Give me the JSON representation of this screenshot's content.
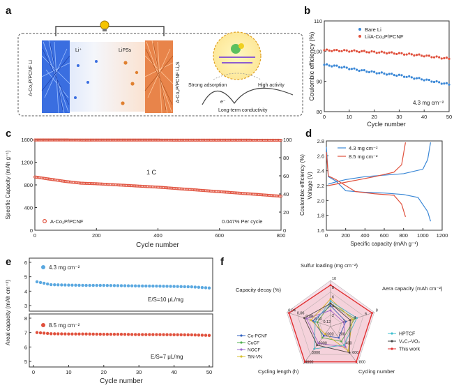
{
  "panels": {
    "a": {
      "letter": "a",
      "labels": {
        "left_electrode": "A-Co₂P/PCNF Li",
        "li_ion": "Li⁺",
        "lipss": "LiPSs",
        "right_electrode": "A-Co₂P/PCNF Li₂S",
        "strong_adsorption": "Strong adsorption",
        "high_activity": "High activity",
        "electron": "e⁻",
        "conductivity": "Long-term conductivity"
      },
      "colors": {
        "li_side": "#2f62d8",
        "s_side": "#e07a3a"
      }
    },
    "b": {
      "letter": "b",
      "ylabel": "Coulombic efficiency (%)",
      "xlabel": "Cycle number",
      "annotation": "4.3 mg cm⁻²",
      "yticks": [
        "80",
        "90",
        "100",
        "110"
      ],
      "xticks": [
        "0",
        "10",
        "20",
        "30",
        "40",
        "50"
      ],
      "legend": [
        "Bare Li",
        "Li/A-Co₂P/PCNF"
      ]
    },
    "c": {
      "letter": "c",
      "ylabel_left": "Specific Capacity (mAh g⁻¹)",
      "ylabel_right": "Coulombic efficiency (%)",
      "xlabel": "Cycle number",
      "rate_label": "1 C",
      "legend": "A-Co₂P/PCNF",
      "decay": "0.047% Per cycle",
      "yticks_left": [
        "0",
        "400",
        "800",
        "1200",
        "1600"
      ],
      "yticks_right": [
        "0",
        "20",
        "40",
        "60",
        "80",
        "100"
      ],
      "xticks": [
        "0",
        "200",
        "400",
        "600",
        "800"
      ]
    },
    "d": {
      "letter": "d",
      "ylabel": "Voltage (V)",
      "xlabel": "Specific capacity (mAh g⁻¹)",
      "legend": [
        "4.3 mg cm⁻²",
        "8.5 mg cm⁻²"
      ],
      "yticks": [
        "1.6",
        "1.8",
        "2.0",
        "2.2",
        "2.4",
        "2.6",
        "2.8"
      ],
      "xticks": [
        "0",
        "200",
        "400",
        "600",
        "800",
        "1000",
        "1200"
      ]
    },
    "e": {
      "letter": "e",
      "ylabel": "Areal capacity (mAh cm⁻²)",
      "xlabel": "Cycle number",
      "top_label": "4.3 mg cm⁻²",
      "top_es": "E/S=10 μL/mg",
      "bottom_label": "8.5 mg cm⁻²",
      "bottom_es": "E/S=7 μL/mg",
      "yticks_top": [
        "3",
        "4",
        "5",
        "6"
      ],
      "yticks_bottom": [
        "5",
        "6",
        "7",
        "8"
      ],
      "xticks": [
        "0",
        "10",
        "20",
        "30",
        "40",
        "50"
      ]
    },
    "f": {
      "letter": "f",
      "axes": [
        "Sulfur loading (mg cm⁻²)",
        "Aera capacity (mAh cm⁻²)",
        "Cycling number",
        "Cycling length (h)",
        "Capacity decay (%)"
      ],
      "axis_ticks": [
        [
          "2",
          "4",
          "6",
          "8",
          "10"
        ],
        [
          "2",
          "4",
          "6",
          "8"
        ],
        [
          "200",
          "400",
          "600",
          "800"
        ],
        [
          "1000",
          "2000",
          "3000",
          "4000"
        ],
        [
          "0.12",
          "0.10",
          "0.08",
          "0.06",
          "0.04"
        ]
      ],
      "legend_left": [
        "Co-PCNF",
        "CuCF",
        "NOCF",
        "TiN-VN"
      ],
      "legend_right": [
        "HPTCF",
        "V₈C₇-VO₂",
        "This work"
      ]
    }
  },
  "chart_data": [
    {
      "panel": "b",
      "type": "scatter",
      "xlabel": "Cycle number",
      "ylabel": "Coulombic efficiency (%)",
      "xlim": [
        0,
        50
      ],
      "ylim": [
        80,
        110
      ],
      "series": [
        {
          "name": "Bare Li",
          "color": "#3a87d6",
          "x": [
            0,
            5,
            10,
            15,
            20,
            25,
            30,
            35,
            40,
            45,
            50
          ],
          "y": [
            95.5,
            95.0,
            94.3,
            93.6,
            93.0,
            92.5,
            92.0,
            91.3,
            90.6,
            89.8,
            89.0
          ]
        },
        {
          "name": "Li/A-Co2P/PCNF",
          "color": "#e0503c",
          "x": [
            0,
            5,
            10,
            15,
            20,
            25,
            30,
            35,
            40,
            45,
            50
          ],
          "y": [
            100.3,
            100.2,
            100.1,
            99.9,
            99.7,
            99.5,
            99.2,
            98.9,
            98.5,
            98.0,
            97.5
          ]
        }
      ]
    },
    {
      "panel": "c",
      "type": "scatter",
      "xlabel": "Cycle number",
      "ylabel": "Specific Capacity (mAh g-1)",
      "xlim": [
        0,
        800
      ],
      "ylim": [
        0,
        1600
      ],
      "y2lim": [
        0,
        100
      ],
      "series": [
        {
          "name": "A-Co2P/PCNF capacity",
          "color": "#e0503c",
          "x": [
            0,
            50,
            100,
            150,
            200,
            300,
            400,
            500,
            600,
            700,
            800
          ],
          "y": [
            940,
            900,
            860,
            830,
            820,
            790,
            760,
            720,
            680,
            640,
            600
          ]
        },
        {
          "name": "Coulombic efficiency",
          "color": "#e0503c",
          "axis": "right",
          "x": [
            0,
            100,
            200,
            300,
            400,
            500,
            600,
            700,
            800
          ],
          "y": [
            99.5,
            99.5,
            99.4,
            99.4,
            99.4,
            99.3,
            99.3,
            99.3,
            99.2
          ]
        }
      ]
    },
    {
      "panel": "d",
      "type": "line",
      "xlabel": "Specific capacity (mAh g-1)",
      "ylabel": "Voltage (V)",
      "xlim": [
        0,
        1200
      ],
      "ylim": [
        1.6,
        2.8
      ],
      "series": [
        {
          "name": "4.3 mg cm-2 discharge",
          "color": "#3a87d6",
          "x": [
            0,
            20,
            100,
            200,
            400,
            600,
            800,
            950,
            1050,
            1080
          ],
          "y": [
            2.72,
            2.32,
            2.26,
            2.13,
            2.11,
            2.1,
            2.08,
            2.04,
            1.85,
            1.72
          ]
        },
        {
          "name": "4.3 mg cm-2 charge",
          "color": "#3a87d6",
          "x": [
            20,
            100,
            200,
            400,
            600,
            800,
            1000,
            1050,
            1080
          ],
          "y": [
            2.22,
            2.25,
            2.28,
            2.32,
            2.34,
            2.36,
            2.42,
            2.55,
            2.78
          ]
        },
        {
          "name": "8.5 mg cm-2 discharge",
          "color": "#e0503c",
          "x": [
            0,
            20,
            100,
            300,
            500,
            700,
            780,
            820
          ],
          "y": [
            2.65,
            2.33,
            2.28,
            2.12,
            2.09,
            2.07,
            1.95,
            1.78
          ]
        },
        {
          "name": "8.5 mg cm-2 charge",
          "color": "#e0503c",
          "x": [
            20,
            100,
            300,
            500,
            700,
            780,
            820
          ],
          "y": [
            2.2,
            2.22,
            2.27,
            2.32,
            2.38,
            2.48,
            2.78
          ]
        }
      ]
    },
    {
      "panel": "e-top",
      "type": "scatter",
      "xlabel": "Cycle number",
      "ylabel": "Areal capacity (mAh cm-2)",
      "xlim": [
        0,
        50
      ],
      "ylim": [
        3,
        6.5
      ],
      "series": [
        {
          "name": "4.3 mg cm-2",
          "color": "#5aa8e0",
          "x": [
            1,
            5,
            10,
            15,
            20,
            25,
            30,
            35,
            40,
            45,
            50
          ],
          "y": [
            4.65,
            4.45,
            4.42,
            4.4,
            4.4,
            4.38,
            4.36,
            4.35,
            4.33,
            4.3,
            4.22
          ]
        }
      ]
    },
    {
      "panel": "e-bottom",
      "type": "scatter",
      "xlabel": "Cycle number",
      "ylabel": "Areal capacity (mAh cm-2)",
      "xlim": [
        0,
        50
      ],
      "ylim": [
        5,
        8.5
      ],
      "series": [
        {
          "name": "8.5 mg cm-2",
          "color": "#e0503c",
          "x": [
            1,
            5,
            10,
            15,
            20,
            25,
            30,
            35,
            40,
            45,
            50
          ],
          "y": [
            7.0,
            6.92,
            6.9,
            6.9,
            6.88,
            6.88,
            6.86,
            6.86,
            6.85,
            6.84,
            6.8
          ]
        }
      ]
    },
    {
      "panel": "f",
      "type": "radar",
      "axes": [
        "Sulfur loading",
        "Aera capacity",
        "Cycling number",
        "Cycling length",
        "Capacity decay"
      ],
      "series": [
        {
          "name": "Co-PCNF",
          "color": "#3060c0",
          "values": [
            0.45,
            0.35,
            0.3,
            0.25,
            0.4
          ]
        },
        {
          "name": "CuCF",
          "color": "#50b050",
          "values": [
            0.5,
            0.55,
            0.4,
            0.3,
            0.3
          ]
        },
        {
          "name": "NOCF",
          "color": "#9a6ad0",
          "values": [
            0.35,
            0.3,
            0.55,
            0.45,
            0.55
          ]
        },
        {
          "name": "TiN-VN",
          "color": "#d8c030",
          "values": [
            0.6,
            0.5,
            0.65,
            0.2,
            0.45
          ]
        },
        {
          "name": "HPTCF",
          "color": "#40c0d0",
          "values": [
            0.55,
            0.6,
            0.5,
            0.6,
            0.35
          ]
        },
        {
          "name": "V8C7-VO2",
          "color": "#444444",
          "values": [
            0.5,
            0.45,
            0.7,
            0.5,
            0.6
          ]
        },
        {
          "name": "This work",
          "color": "#e03030",
          "values": [
            0.9,
            0.95,
            0.95,
            0.95,
            0.95
          ]
        }
      ]
    }
  ]
}
